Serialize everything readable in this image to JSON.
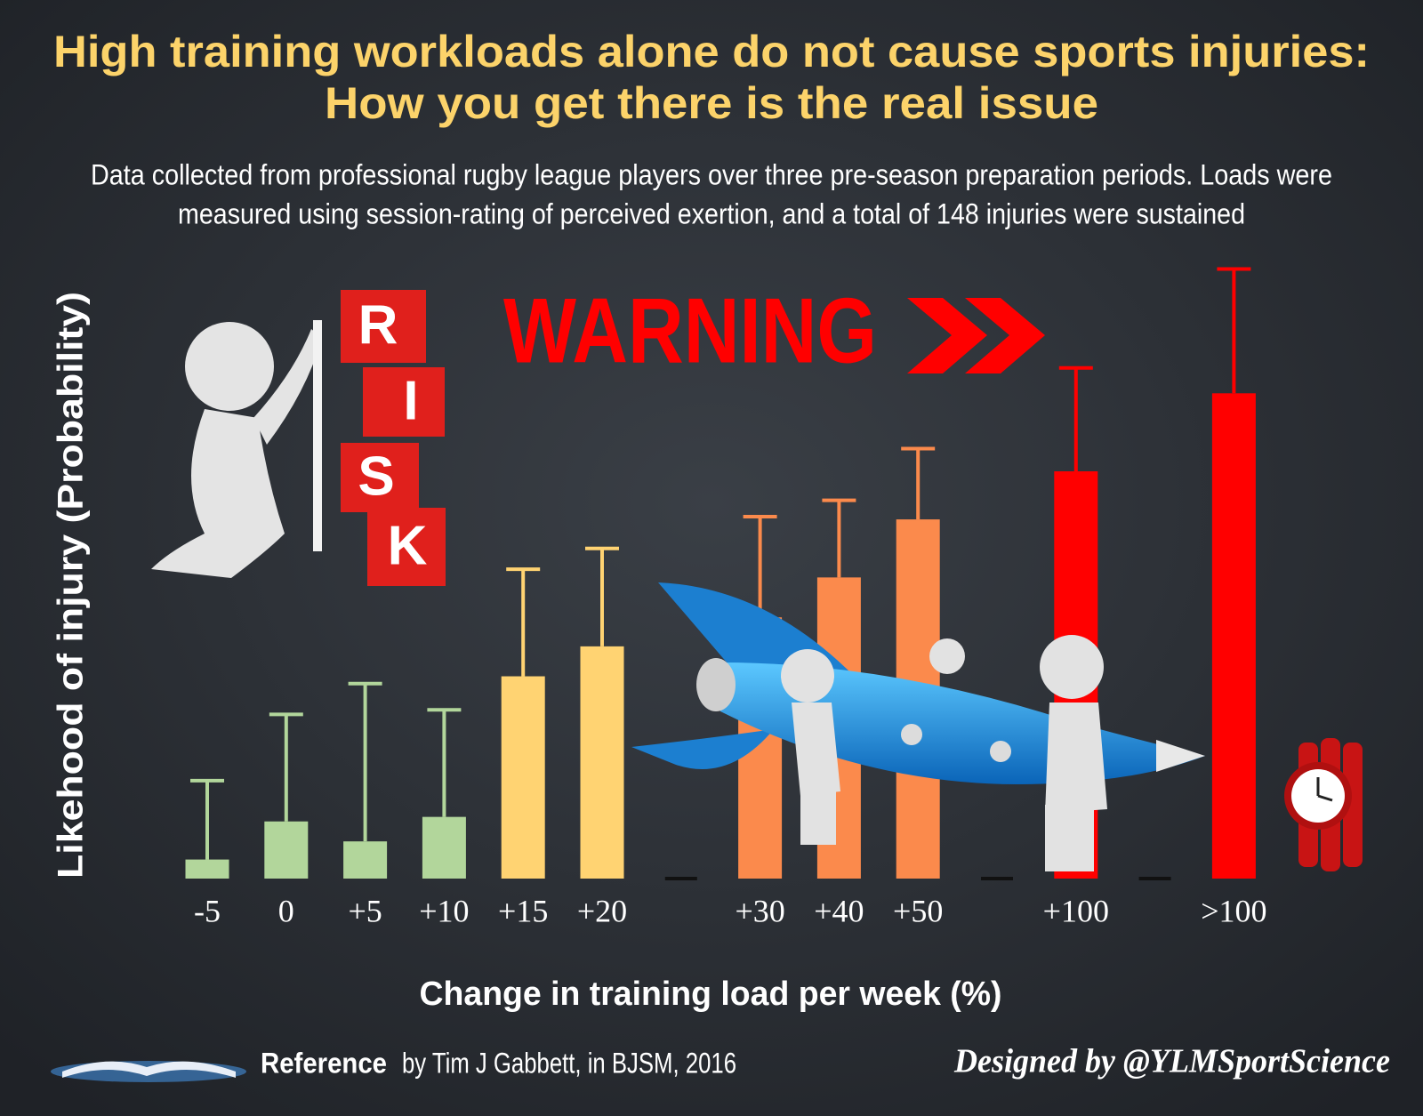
{
  "chart_data": {
    "type": "bar",
    "title": [
      "High training workloads alone do not cause sports injuries:",
      "How you get there is the real issue"
    ],
    "subtitle": [
      "Data collected from professional rugby league players over three pre-season preparation periods. Loads were",
      "measured using session-rating of perceived exertion, and a total of 148 injuries were sustained"
    ],
    "y_label": "Likehood of injury (Probability)",
    "x_label": "Change in training load per week (%)",
    "categories": [
      "-5",
      "0",
      "+5",
      "+10",
      "+15",
      "+20",
      null,
      "+30",
      "+40",
      "+50",
      null,
      "+100",
      null,
      ">100"
    ],
    "values": [
      21,
      63,
      41,
      68,
      223,
      256,
      null,
      288,
      332,
      396,
      null,
      449,
      null,
      535
    ],
    "errors": [
      87,
      118,
      174,
      118,
      118,
      108,
      null,
      111,
      85,
      78,
      null,
      114,
      null,
      137
    ],
    "colors": [
      "#b2d69b",
      "#b2d69b",
      "#b2d69b",
      "#b2d69b",
      "#ffd372",
      "#ffd372",
      null,
      "#fb8a4c",
      "#fb8a4c",
      "#fb8a4c",
      null,
      "#ff0000",
      null,
      "#ff0000"
    ],
    "ylim": [
      0,
      700
    ],
    "annotations": {
      "warning": "WARNING",
      "cubes": [
        "R",
        "I",
        "S",
        "K"
      ]
    },
    "reference": {
      "label": "Reference",
      "text": "by Tim J Gabbett, in BJSM, 2016"
    },
    "credit": "Designed by @YLMSportScience"
  }
}
